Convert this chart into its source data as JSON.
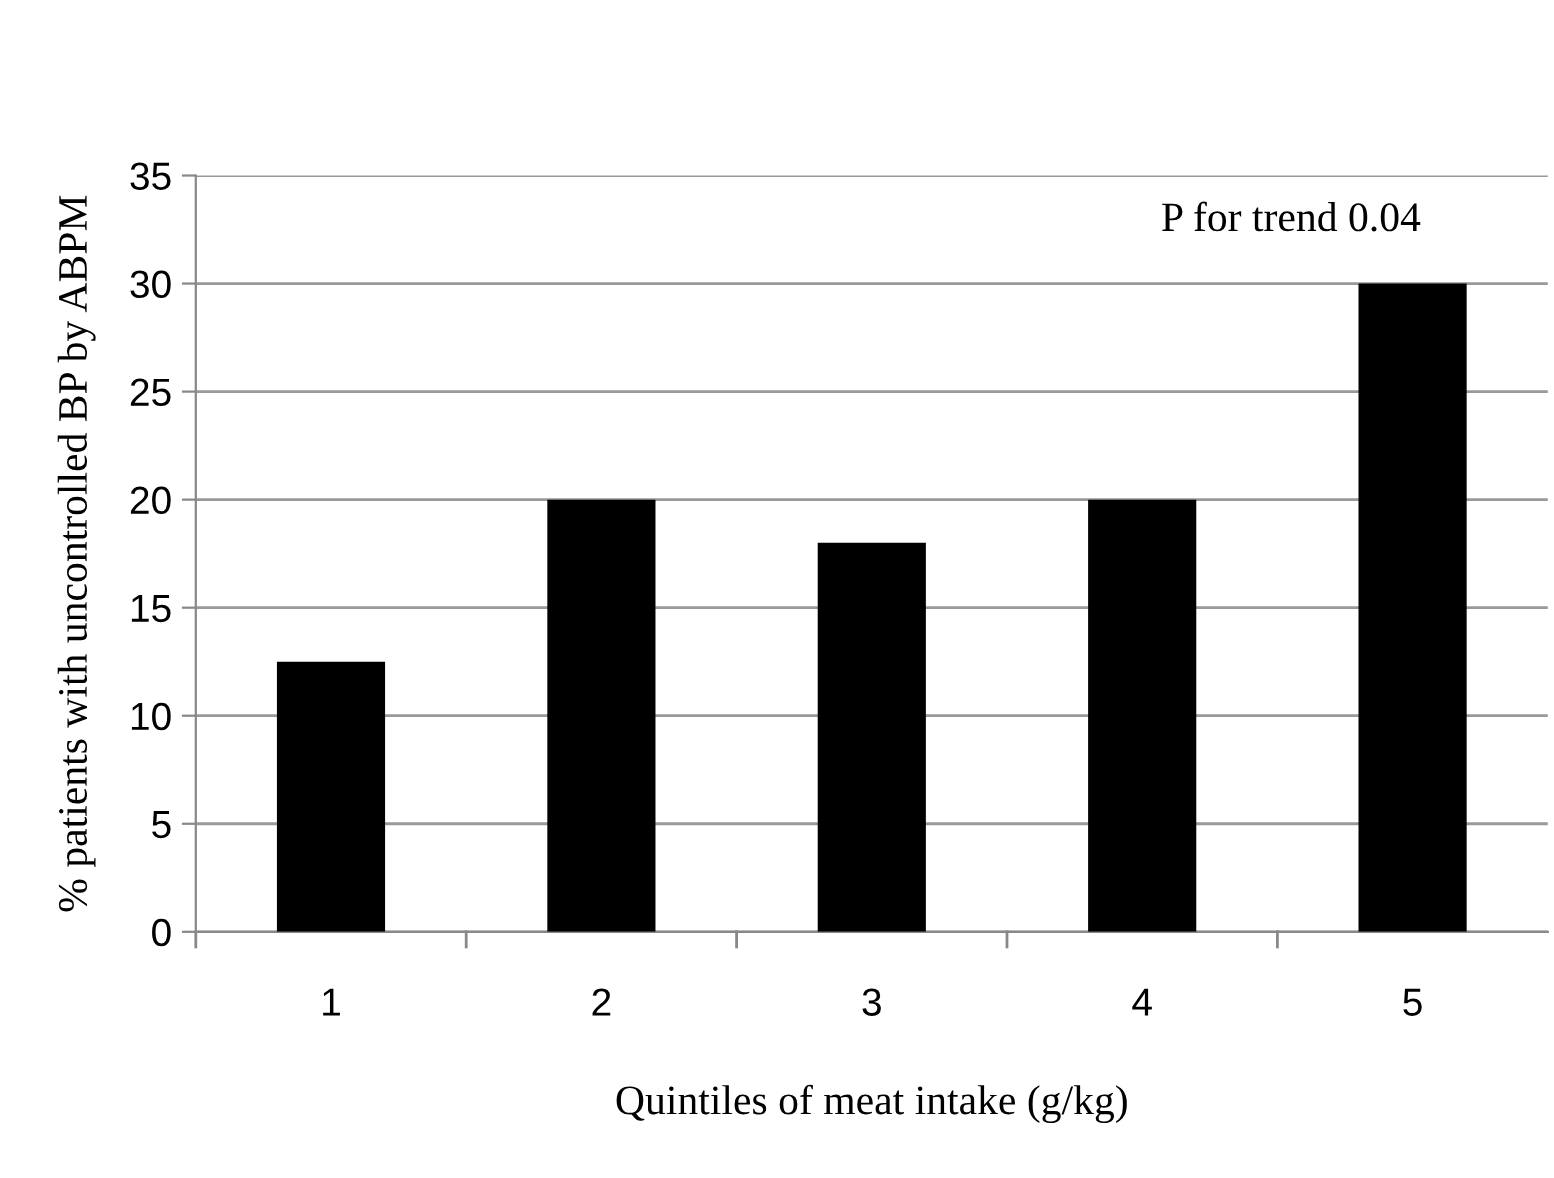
{
  "chart_data": {
    "type": "bar",
    "xlabel": "Quintiles of meat intake (g/kg)",
    "ylabel": "% patients with uncontrolled BP by ABPM",
    "categories": [
      "1",
      "2",
      "3",
      "4",
      "5"
    ],
    "values": [
      12.5,
      20,
      18,
      20,
      30
    ],
    "color": "#000000",
    "ylim": [
      0,
      35
    ],
    "yticks": [
      0,
      5,
      10,
      15,
      20,
      25,
      30,
      35
    ],
    "grid": "y",
    "annotations": [
      "P for trend 0.04"
    ]
  }
}
